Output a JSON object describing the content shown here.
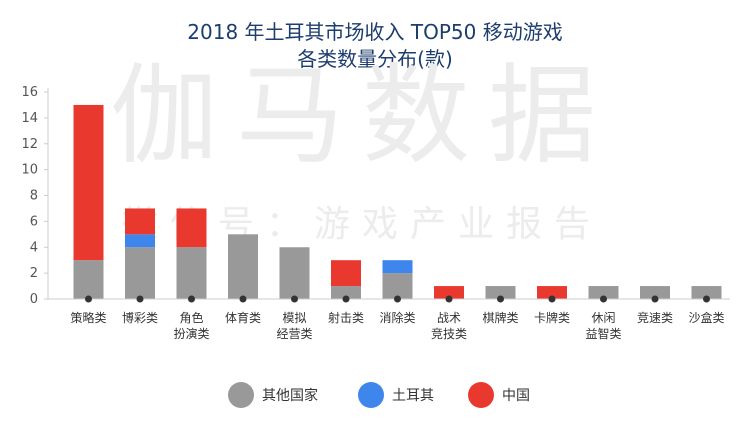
{
  "colors": {
    "other": "#999999",
    "turkey": "#3f86ec",
    "china": "#e9392f",
    "axis": "#cccccc",
    "grid": "#e6e6e6",
    "text": "#333333",
    "title": "#1d3d6e"
  },
  "title_line1": "2018 年土耳其市场收入 TOP50 移动游戏",
  "title_line2": "各类数量分布(款)",
  "watermark": {
    "main": "伽马数据",
    "sub": "微信号：游戏产业报告"
  },
  "chart_data": {
    "type": "bar",
    "stacked": true,
    "title": "2018 年土耳其市场收入 TOP50 移动游戏 各类数量分布(款)",
    "categories": [
      [
        "策略类"
      ],
      [
        "博彩类"
      ],
      [
        "角色",
        "扮演类"
      ],
      [
        "体育类"
      ],
      [
        "模拟",
        "经营类"
      ],
      [
        "射击类"
      ],
      [
        "消除类"
      ],
      [
        "战术",
        "竞技类"
      ],
      [
        "棋牌类"
      ],
      [
        "卡牌类"
      ],
      [
        "休闲",
        "益智类"
      ],
      [
        "竞速类"
      ],
      [
        "沙盒类"
      ]
    ],
    "series": [
      {
        "name": "其他国家",
        "color_key": "other",
        "values": [
          3,
          4,
          4,
          5,
          4,
          1,
          2,
          0,
          1,
          0,
          1,
          1,
          1
        ]
      },
      {
        "name": "土耳其",
        "color_key": "turkey",
        "values": [
          0,
          1,
          0,
          0,
          0,
          0,
          1,
          0,
          0,
          0,
          0,
          0,
          0
        ]
      },
      {
        "name": "中国",
        "color_key": "china",
        "values": [
          12,
          2,
          3,
          0,
          0,
          2,
          0,
          1,
          0,
          1,
          0,
          0,
          0
        ]
      }
    ],
    "yticks": [
      0,
      2,
      4,
      6,
      8,
      10,
      12,
      14,
      16
    ],
    "ylim": [
      0,
      16
    ],
    "legend_position": "bottom",
    "grid": false
  }
}
